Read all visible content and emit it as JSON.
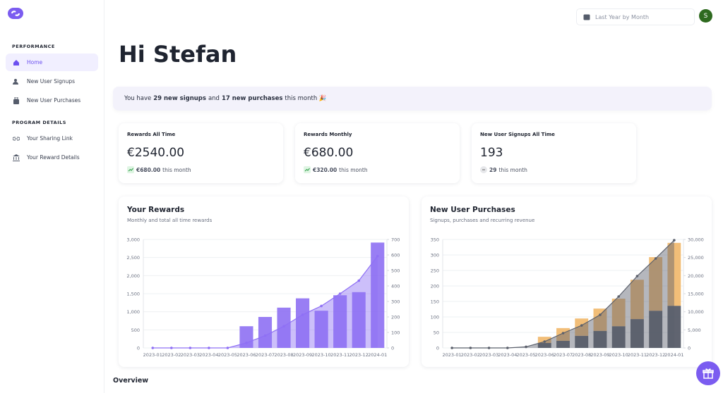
{
  "sidebar": {
    "sections": [
      {
        "title": "PERFORMANCE",
        "items": [
          "Home",
          "New User Signups",
          "New User Purchases"
        ]
      },
      {
        "title": "PROGRAM DETAILS",
        "items": [
          "Your Sharing Link",
          "Your Reward Details"
        ]
      }
    ]
  },
  "header": {
    "date_range": "Last Year by Month",
    "avatar": "S"
  },
  "greeting": "Hi Stefan",
  "banner": {
    "prefix": "You have",
    "signups": "29 new signups",
    "middle": "and",
    "purchases": "17 new purchases",
    "suffix": "this month 🎉"
  },
  "cards": [
    {
      "title": "Rewards All Time",
      "value": "€2540.00",
      "delta": "€680.00",
      "delta_suffix": "this month"
    },
    {
      "title": "Rewards Monthly",
      "value": "€680.00",
      "delta": "€320.00",
      "delta_suffix": "this month"
    },
    {
      "title": "New User Signups All Time",
      "value": "193",
      "delta": "29",
      "delta_suffix": "this month"
    }
  ],
  "section_title": "Overview",
  "chart_data": [
    {
      "type": "combo",
      "title": "Your Rewards",
      "subtitle": "Monthly and total all time rewards",
      "categories": [
        "2023-01",
        "2023-02",
        "2023-03",
        "2023-04",
        "2023-05",
        "2023-06",
        "2023-07",
        "2023-08",
        "2023-09",
        "2023-10",
        "2023-11",
        "2023-12",
        "2024-01"
      ],
      "series": [
        {
          "type": "bar",
          "axis": "y2",
          "color": "#8b6cf2",
          "values": [
            0,
            0,
            0,
            0,
            0,
            140,
            200,
            260,
            320,
            240,
            340,
            360,
            680
          ]
        },
        {
          "type": "line",
          "area": true,
          "color": "#8f70f5",
          "values": [
            0,
            0,
            0,
            0,
            0,
            140,
            340,
            600,
            920,
            1160,
            1500,
            1860,
            2540
          ]
        }
      ],
      "ylim": [
        0,
        3000
      ],
      "yticks": [
        0,
        500,
        {
          "value": 1000,
          "label": "1,000"
        },
        {
          "value": 1500,
          "label": "1,500"
        },
        {
          "value": 2000,
          "label": "2,000"
        },
        {
          "value": 2500,
          "label": "2,500"
        },
        {
          "value": 3000,
          "label": "3,000"
        }
      ],
      "y2lim": [
        0,
        700
      ],
      "y2ticks": [
        0,
        100,
        200,
        300,
        400,
        500,
        600,
        700
      ],
      "grid": true
    },
    {
      "type": "combo",
      "title": "New User Purchases",
      "subtitle": "Signups, purchases and recurring revenue",
      "categories": [
        "2023-01",
        "2023-02",
        "2023-03",
        "2023-04",
        "2023-05",
        "2023-06",
        "2023-07",
        "2023-08",
        "2023-09",
        "2023-10",
        "2023-11",
        "2023-12",
        "2024-01"
      ],
      "stacked": true,
      "series": [
        {
          "type": "bar",
          "color": "#4a4f5c",
          "values": [
            0,
            0,
            0,
            0,
            0,
            16,
            23,
            39,
            55,
            70,
            93,
            120,
            136
          ]
        },
        {
          "type": "bar",
          "color": "#f0b565",
          "values": [
            0,
            0,
            0,
            0,
            0,
            20,
            41,
            56,
            72,
            89,
            127,
            173,
            203
          ]
        },
        {
          "type": "line",
          "axis": "y2",
          "area": true,
          "color": "#5b606c",
          "values": [
            0,
            0,
            0,
            0,
            300,
            1750,
            4090,
            6230,
            9160,
            14220,
            19870,
            24740,
            29800
          ]
        }
      ],
      "ylim": [
        0,
        350
      ],
      "yticks": [
        0,
        50,
        100,
        150,
        200,
        250,
        300,
        350
      ],
      "y2lim": [
        0,
        30000
      ],
      "y2ticks": [
        0,
        {
          "value": 5000,
          "label": "5,000"
        },
        {
          "value": 10000,
          "label": "10,000"
        },
        {
          "value": 15000,
          "label": "15,000"
        },
        {
          "value": 20000,
          "label": "20,000"
        },
        {
          "value": 25000,
          "label": "25,000"
        },
        {
          "value": 30000,
          "label": "30,000"
        }
      ],
      "grid": true
    }
  ]
}
